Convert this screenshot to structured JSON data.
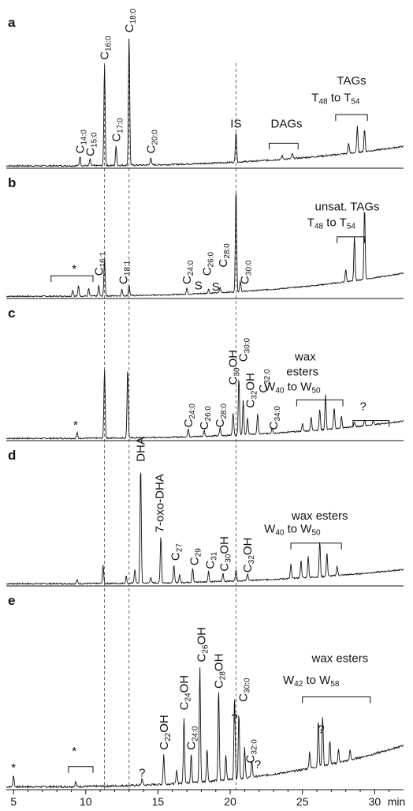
{
  "chart_data": {
    "type": "line",
    "xlabel": "min",
    "xlim": [
      4.5,
      32
    ],
    "xticks": [
      5,
      10,
      15,
      20,
      25,
      30
    ],
    "reference_lines": [
      11.3,
      13.0,
      20.4
    ],
    "panels": [
      {
        "label": "a",
        "baseline": 0.03,
        "drift": 0.15,
        "peaks": [
          {
            "x": 9.6,
            "h": 0.07
          },
          {
            "x": 10.3,
            "h": 0.05
          },
          {
            "x": 11.3,
            "h": 0.78
          },
          {
            "x": 12.1,
            "h": 0.15
          },
          {
            "x": 13.0,
            "h": 1.0
          },
          {
            "x": 14.5,
            "h": 0.06
          },
          {
            "x": 20.4,
            "h": 0.24
          },
          {
            "x": 23.6,
            "h": 0.03
          },
          {
            "x": 24.3,
            "h": 0.04
          },
          {
            "x": 28.2,
            "h": 0.08
          },
          {
            "x": 28.8,
            "h": 0.2
          },
          {
            "x": 29.3,
            "h": 0.17
          }
        ],
        "labels": [
          {
            "base": "C",
            "sub": "14:0",
            "x": 9.6,
            "y": 0.1,
            "rot": -90
          },
          {
            "base": "C",
            "sub": "15:0",
            "x": 10.3,
            "y": 0.08,
            "rot": -90
          },
          {
            "base": "C",
            "sub": "16:0",
            "x": 11.3,
            "y": 0.82,
            "rot": -90
          },
          {
            "base": "C",
            "sub": "17:0",
            "x": 12.1,
            "y": 0.19,
            "rot": -90
          },
          {
            "base": "C",
            "sub": "18:0",
            "x": 13.0,
            "y": 1.03,
            "rot": -90
          },
          {
            "base": "C",
            "sub": "20:0",
            "x": 14.5,
            "y": 0.1,
            "rot": -90
          },
          {
            "base": "IS",
            "sub": "",
            "x": 20.4,
            "y": 0.3,
            "rot": 0
          },
          {
            "base": "DAGs",
            "sub": "",
            "x": 23.9,
            "y": 0.3,
            "rot": 0
          },
          {
            "base": "TAGs",
            "sub": "",
            "x": 28.4,
            "y": 0.63,
            "rot": 0
          },
          {
            "base": "T",
            "sub": "48",
            "x": 27.3,
            "y": 0.5,
            "rot": 0,
            "suffix": " to T",
            "sub2": "54"
          }
        ],
        "brackets": [
          {
            "x1": 22.7,
            "x2": 24.7,
            "y": 0.18
          },
          {
            "x1": 27.3,
            "x2": 29.5,
            "y": 0.4
          }
        ]
      },
      {
        "label": "b",
        "baseline": 0.03,
        "drift": 0.22,
        "peaks": [
          {
            "x": 9.1,
            "h": 0.06
          },
          {
            "x": 9.5,
            "h": 0.1
          },
          {
            "x": 10.2,
            "h": 0.07
          },
          {
            "x": 10.9,
            "h": 0.1
          },
          {
            "x": 11.3,
            "h": 0.35
          },
          {
            "x": 12.5,
            "h": 0.06
          },
          {
            "x": 13.0,
            "h": 0.1
          },
          {
            "x": 17.0,
            "h": 0.06
          },
          {
            "x": 18.5,
            "h": 0.04
          },
          {
            "x": 19.3,
            "h": 0.05
          },
          {
            "x": 20.4,
            "h": 1.0
          },
          {
            "x": 20.7,
            "h": 0.1
          },
          {
            "x": 28.0,
            "h": 0.12
          },
          {
            "x": 28.6,
            "h": 0.42
          },
          {
            "x": 29.3,
            "h": 0.68
          }
        ],
        "labels": [
          {
            "base": "*",
            "sub": "",
            "x": 9.2,
            "y": 0.23,
            "rot": 0
          },
          {
            "base": "C",
            "sub": "16:1",
            "x": 10.9,
            "y": 0.2,
            "rot": -90
          },
          {
            "base": "C",
            "sub": "18:1",
            "x": 12.6,
            "y": 0.12,
            "rot": -90
          },
          {
            "base": "C",
            "sub": "24:0",
            "x": 17.0,
            "y": 0.12,
            "rot": -90
          },
          {
            "base": "S",
            "sub": "",
            "x": 17.8,
            "y": 0.07,
            "rot": 0
          },
          {
            "base": "C",
            "sub": "26:0",
            "x": 18.4,
            "y": 0.2,
            "rot": -90
          },
          {
            "base": "S",
            "sub": "",
            "x": 19.0,
            "y": 0.06,
            "rot": 0
          },
          {
            "base": "C",
            "sub": "28:0",
            "x": 19.5,
            "y": 0.28,
            "rot": -90
          },
          {
            "base": "C",
            "sub": "30:0",
            "x": 21.0,
            "y": 0.12,
            "rot": -90
          },
          {
            "base": "unsat. TAGs",
            "sub": "",
            "x": 28.1,
            "y": 0.82,
            "rot": 0
          },
          {
            "base": "T",
            "sub": "48",
            "x": 27.0,
            "y": 0.67,
            "rot": 0,
            "suffix": " to T",
            "sub2": "54"
          }
        ],
        "brackets": [
          {
            "x1": 7.6,
            "x2": 10.5,
            "y": 0.2
          },
          {
            "x1": 27.4,
            "x2": 29.3,
            "y": 0.57
          }
        ]
      },
      {
        "label": "c",
        "baseline": 0.03,
        "drift": 0.15,
        "peaks": [
          {
            "x": 9.4,
            "h": 0.05
          },
          {
            "x": 11.3,
            "h": 0.6
          },
          {
            "x": 12.9,
            "h": 0.6
          },
          {
            "x": 17.1,
            "h": 0.07
          },
          {
            "x": 18.2,
            "h": 0.05
          },
          {
            "x": 19.3,
            "h": 0.07
          },
          {
            "x": 20.2,
            "h": 0.2
          },
          {
            "x": 20.6,
            "h": 0.5
          },
          {
            "x": 20.9,
            "h": 0.3
          },
          {
            "x": 21.2,
            "h": 0.15
          },
          {
            "x": 21.9,
            "h": 0.18
          },
          {
            "x": 22.9,
            "h": 0.05
          },
          {
            "x": 25.0,
            "h": 0.07
          },
          {
            "x": 25.6,
            "h": 0.12
          },
          {
            "x": 26.2,
            "h": 0.18
          },
          {
            "x": 26.6,
            "h": 0.3
          },
          {
            "x": 27.2,
            "h": 0.18
          },
          {
            "x": 27.7,
            "h": 0.1
          },
          {
            "x": 28.6,
            "h": 0.04
          },
          {
            "x": 29.3,
            "h": 0.05
          },
          {
            "x": 29.9,
            "h": 0.04
          }
        ],
        "labels": [
          {
            "base": "*",
            "sub": "",
            "x": 9.3,
            "y": 0.09,
            "rot": 0
          },
          {
            "base": "C",
            "sub": "24:0",
            "x": 17.1,
            "y": 0.1,
            "rot": -90
          },
          {
            "base": "C",
            "sub": "26:0",
            "x": 18.2,
            "y": 0.08,
            "rot": -90
          },
          {
            "base": "C",
            "sub": "28:0",
            "x": 19.3,
            "y": 0.1,
            "rot": -90
          },
          {
            "base": "C",
            "sub": "30",
            "x": 20.2,
            "y": 0.47,
            "rot": -90,
            "suffix": "OH"
          },
          {
            "base": "C",
            "sub": "30:0",
            "x": 20.9,
            "y": 0.67,
            "rot": -90
          },
          {
            "base": "C",
            "sub": "32",
            "x": 21.4,
            "y": 0.27,
            "rot": -90,
            "suffix": "OH"
          },
          {
            "base": "C",
            "sub": "32:0",
            "x": 22.3,
            "y": 0.4,
            "rot": -90
          },
          {
            "base": "C",
            "sub": "34:0",
            "x": 23.0,
            "y": 0.08,
            "rot": -90
          },
          {
            "base": "wax",
            "sub": "",
            "x": 25.2,
            "y": 0.68,
            "rot": 0
          },
          {
            "base": "esters",
            "sub": "",
            "x": 25.0,
            "y": 0.55,
            "rot": 0
          },
          {
            "base": "W",
            "sub": "40",
            "x": 24.3,
            "y": 0.42,
            "rot": 0,
            "suffix": " to W",
            "sub2": "50"
          },
          {
            "base": "?",
            "sub": "",
            "x": 29.2,
            "y": 0.25,
            "rot": 0
          }
        ],
        "brackets": [
          {
            "x1": 24.6,
            "x2": 27.8,
            "y": 0.34
          },
          {
            "x1": 28.5,
            "x2": 31.0,
            "y": 0.16
          }
        ]
      },
      {
        "label": "d",
        "baseline": 0.03,
        "drift": 0.12,
        "peaks": [
          {
            "x": 9.4,
            "h": 0.03
          },
          {
            "x": 11.2,
            "h": 0.15
          },
          {
            "x": 12.8,
            "h": 0.06
          },
          {
            "x": 13.4,
            "h": 0.12
          },
          {
            "x": 13.8,
            "h": 1.0
          },
          {
            "x": 14.5,
            "h": 0.05
          },
          {
            "x": 15.2,
            "h": 0.4
          },
          {
            "x": 16.1,
            "h": 0.15
          },
          {
            "x": 16.5,
            "h": 0.07
          },
          {
            "x": 17.4,
            "h": 0.12
          },
          {
            "x": 18.5,
            "h": 0.09
          },
          {
            "x": 19.5,
            "h": 0.07
          },
          {
            "x": 20.4,
            "h": 0.1
          },
          {
            "x": 21.2,
            "h": 0.06
          },
          {
            "x": 24.2,
            "h": 0.12
          },
          {
            "x": 24.9,
            "h": 0.15
          },
          {
            "x": 25.4,
            "h": 0.18
          },
          {
            "x": 26.2,
            "h": 0.3
          },
          {
            "x": 26.7,
            "h": 0.2
          },
          {
            "x": 27.4,
            "h": 0.08
          }
        ],
        "labels": [
          {
            "base": "DHA",
            "sub": "",
            "x": 13.8,
            "y": 1.04,
            "rot": -90
          },
          {
            "base": "7-oxo-DHA",
            "sub": "",
            "x": 15.1,
            "y": 0.44,
            "rot": -90
          },
          {
            "base": "C",
            "sub": "27",
            "x": 16.2,
            "y": 0.2,
            "rot": -90
          },
          {
            "base": "C",
            "sub": "29",
            "x": 17.5,
            "y": 0.16,
            "rot": -90
          },
          {
            "base": "C",
            "sub": "31",
            "x": 18.6,
            "y": 0.13,
            "rot": -90
          },
          {
            "base": "C",
            "sub": "30",
            "x": 19.6,
            "y": 0.11,
            "rot": -90,
            "suffix": "OH"
          },
          {
            "base": "C",
            "sub": "32",
            "x": 21.2,
            "y": 0.1,
            "rot": -90,
            "suffix": "OH"
          },
          {
            "base": "wax esters",
            "sub": "",
            "x": 26.2,
            "y": 0.55,
            "rot": 0
          },
          {
            "base": "W",
            "sub": "40",
            "x": 24.3,
            "y": 0.44,
            "rot": 0,
            "suffix": " to W",
            "sub2": "50"
          }
        ],
        "brackets": [
          {
            "x1": 24.2,
            "x2": 27.7,
            "y": 0.35
          }
        ]
      },
      {
        "label": "e",
        "baseline": 0.04,
        "drift": 0.25,
        "peaks": [
          {
            "x": 5.0,
            "h": 0.07
          },
          {
            "x": 9.3,
            "h": 0.03
          },
          {
            "x": 13.9,
            "h": 0.04
          },
          {
            "x": 15.4,
            "h": 0.18
          },
          {
            "x": 16.3,
            "h": 0.08
          },
          {
            "x": 16.8,
            "h": 0.4
          },
          {
            "x": 17.3,
            "h": 0.18
          },
          {
            "x": 17.9,
            "h": 0.7
          },
          {
            "x": 18.4,
            "h": 0.2
          },
          {
            "x": 19.2,
            "h": 0.55
          },
          {
            "x": 19.7,
            "h": 0.15
          },
          {
            "x": 20.3,
            "h": 0.5
          },
          {
            "x": 20.6,
            "h": 0.4
          },
          {
            "x": 21.0,
            "h": 0.18
          },
          {
            "x": 21.5,
            "h": 0.1
          },
          {
            "x": 25.5,
            "h": 0.1
          },
          {
            "x": 26.1,
            "h": 0.28
          },
          {
            "x": 26.4,
            "h": 0.3
          },
          {
            "x": 26.9,
            "h": 0.14
          },
          {
            "x": 27.5,
            "h": 0.08
          },
          {
            "x": 28.3,
            "h": 0.06
          }
        ],
        "labels": [
          {
            "base": "*",
            "sub": "",
            "x": 5.0,
            "y": 0.1,
            "rot": 0
          },
          {
            "base": "*",
            "sub": "",
            "x": 9.2,
            "y": 0.2,
            "rot": 0
          },
          {
            "base": "?",
            "sub": "",
            "x": 13.9,
            "y": 0.07,
            "rot": 0
          },
          {
            "base": "C",
            "sub": "22",
            "x": 15.4,
            "y": 0.23,
            "rot": -90,
            "suffix": "OH"
          },
          {
            "base": "C",
            "sub": "24",
            "x": 16.8,
            "y": 0.47,
            "rot": -90,
            "suffix": "OH"
          },
          {
            "base": "C",
            "sub": "24:0",
            "x": 17.3,
            "y": 0.23,
            "rot": -90
          },
          {
            "base": "C",
            "sub": "26",
            "x": 18.0,
            "y": 0.76,
            "rot": -90,
            "suffix": "OH"
          },
          {
            "base": "C",
            "sub": "28",
            "x": 19.2,
            "y": 0.6,
            "rot": -90,
            "suffix": "OH"
          },
          {
            "base": "?",
            "sub": "",
            "x": 20.3,
            "y": 0.4,
            "rot": 0
          },
          {
            "base": "C",
            "sub": "30:0",
            "x": 20.9,
            "y": 0.52,
            "rot": -90
          },
          {
            "base": "C",
            "sub": "32:0",
            "x": 21.4,
            "y": 0.15,
            "rot": -90
          },
          {
            "base": "?",
            "sub": "",
            "x": 21.9,
            "y": 0.12,
            "rot": 0
          },
          {
            "base": "wax esters",
            "sub": "",
            "x": 27.6,
            "y": 0.76,
            "rot": 0
          },
          {
            "base": "W",
            "sub": "42",
            "x": 25.6,
            "y": 0.63,
            "rot": 0,
            "suffix": " to W",
            "sub2": "58"
          },
          {
            "base": "?",
            "sub": "",
            "x": 26.3,
            "y": 0.33,
            "rot": 0
          }
        ],
        "brackets": [
          {
            "x1": 8.8,
            "x2": 10.5,
            "y": 0.13
          },
          {
            "x1": 25.0,
            "x2": 29.7,
            "y": 0.55
          }
        ]
      }
    ]
  }
}
